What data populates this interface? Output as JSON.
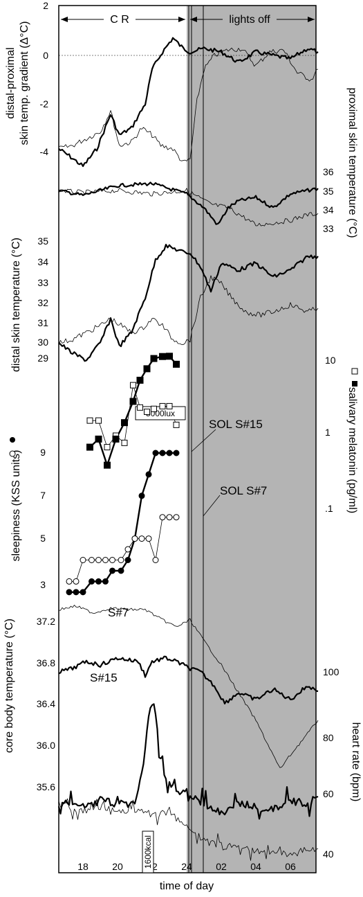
{
  "chart_data": {
    "type": "line",
    "x_label": "time of day",
    "x_ticks": [
      "18",
      "20",
      "22",
      "24",
      "02",
      "04",
      "06"
    ],
    "header": {
      "cr": "C R",
      "lights_off": "lights off"
    },
    "annotations": {
      "lux": "5000lux",
      "kcal": "1600kcal",
      "sol15": "SOL S#15",
      "sol7": "SOL S#7",
      "s7": "S#7",
      "s15": "S#15"
    },
    "panels": [
      {
        "id": "gradient",
        "left_label_1": "distal-proximal",
        "left_label_2": "skin temp. gradient (Δ°C)",
        "left_ticks": [
          "2",
          "0",
          "-2",
          "-4"
        ]
      },
      {
        "id": "proximal",
        "right_label": "proximal skin temperature (°C)",
        "right_ticks": [
          "36",
          "35",
          "34",
          "33"
        ]
      },
      {
        "id": "distal",
        "left_label": "distal skin temperature (°C)",
        "left_ticks": [
          "35",
          "34",
          "33",
          "32",
          "31",
          "30",
          "29"
        ]
      },
      {
        "id": "sleepiness",
        "left_label": "sleepiness (KSS units)",
        "left_ticks": [
          "9",
          "7",
          "5",
          "3"
        ],
        "right_label": "salivary melatonin (pg/ml)",
        "right_ticks": [
          "10",
          "1",
          ".1"
        ],
        "series": [
          {
            "subject": "S#15",
            "x": [
              17.2,
              17.6,
              18.0,
              18.5,
              18.9,
              19.3,
              19.7,
              20.2,
              20.6,
              21.0,
              21.4,
              21.8,
              22.2,
              22.6,
              23.0,
              23.4
            ],
            "y": [
              2.5,
              2.5,
              2.5,
              3.0,
              3.0,
              3.0,
              3.5,
              3.5,
              4.0,
              5.0,
              7.0,
              8.0,
              9.0,
              9.0,
              9.0,
              9.0
            ]
          },
          {
            "subject": "S#7",
            "x": [
              17.2,
              17.6,
              18.0,
              18.5,
              18.9,
              19.3,
              19.7,
              20.2,
              20.6,
              21.0,
              21.4,
              21.8,
              22.2,
              22.6,
              23.0,
              23.4
            ],
            "y": [
              3.0,
              3.0,
              4.0,
              4.0,
              4.0,
              4.0,
              4.0,
              4.0,
              4.5,
              5.0,
              5.0,
              5.0,
              4.0,
              6.0,
              6.0,
              6.0
            ]
          },
          {
            "subject": "S#15 melatonin",
            "x": [
              18.4,
              18.9,
              19.4,
              19.9,
              20.4,
              20.9,
              21.3,
              21.7,
              22.1,
              22.6,
              23.0,
              23.4
            ],
            "y": [
              0.7,
              0.9,
              0.4,
              0.9,
              1.5,
              2.9,
              5.6,
              8.0,
              11.0,
              11.7,
              11.8,
              9.2
            ]
          },
          {
            "subject": "S#7 melatonin",
            "x": [
              18.4,
              18.9,
              19.4,
              19.9,
              20.4,
              20.9,
              21.3,
              21.7,
              22.1,
              22.6,
              23.0,
              23.4
            ],
            "y": [
              1.6,
              1.6,
              0.7,
              1.0,
              0.8,
              4.8,
              2.4,
              2.1,
              2.3,
              2.5,
              2.5,
              1.4
            ]
          }
        ]
      },
      {
        "id": "core",
        "left_label": "core body temperature (°C)",
        "left_ticks": [
          "37.2",
          "36.8",
          "36.4",
          "36.0",
          "35.6"
        ],
        "right_label": "heart rate (bpm)",
        "right_ticks": [
          "100",
          "80",
          "60",
          "40"
        ]
      }
    ]
  }
}
